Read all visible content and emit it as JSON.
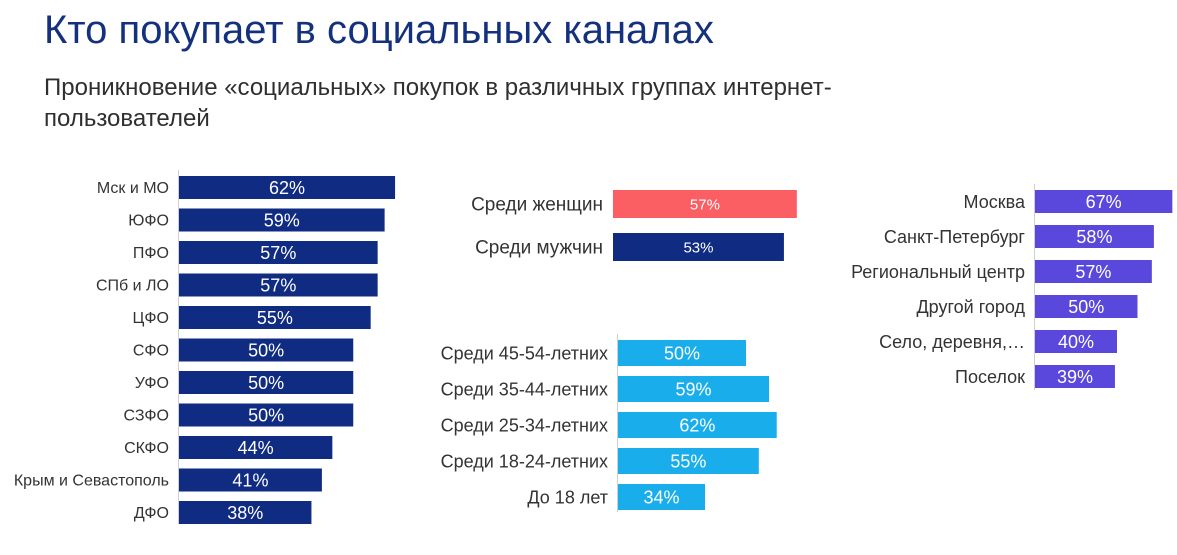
{
  "title": "Кто покупает в социальных каналах",
  "subtitle": "Проникновение «социальных» покупок в различных группах интернет-пользователей",
  "colors": {
    "navy": "#0f2b82",
    "coral": "#fb5e63",
    "sky": "#19aeeb",
    "violet": "#5a48dc",
    "axis": "#cfcfcf",
    "label": "#333333"
  },
  "chart_data": [
    {
      "type": "bar",
      "orientation": "horizontal",
      "categories": [
        "Мск и МО",
        "ЮФО",
        "ПФО",
        "СПб и ЛО",
        "ЦФО",
        "СФО",
        "УФО",
        "СЗФО",
        "СКФО",
        "Крым и Севастополь",
        "ДФО"
      ],
      "values": [
        62,
        59,
        57,
        57,
        55,
        50,
        50,
        50,
        44,
        41,
        38
      ],
      "data_labels": [
        "62%",
        "59%",
        "57%",
        "57%",
        "55%",
        "50%",
        "50%",
        "50%",
        "44%",
        "41%",
        "38%"
      ],
      "color": "#0f2b82"
    },
    {
      "type": "bar",
      "orientation": "horizontal",
      "categories": [
        "Среди женщин",
        "Среди мужчин"
      ],
      "values": [
        57,
        53
      ],
      "data_labels": [
        "57%",
        "53%"
      ],
      "colors": [
        "#fb5e63",
        "#0f2b82"
      ]
    },
    {
      "type": "bar",
      "orientation": "horizontal",
      "categories": [
        "Среди 45-54-летних",
        "Среди 35-44-летних",
        "Среди 25-34-летних",
        "Среди 18-24-летних",
        "До 18 лет"
      ],
      "values": [
        50,
        59,
        62,
        55,
        34
      ],
      "data_labels": [
        "50%",
        "59%",
        "62%",
        "55%",
        "34%"
      ],
      "color": "#19aeeb"
    },
    {
      "type": "bar",
      "orientation": "horizontal",
      "categories": [
        "Москва",
        "Санкт-Петербург",
        "Региональный центр",
        "Другой город",
        "Село, деревня,…",
        "Поселок"
      ],
      "values": [
        67,
        58,
        57,
        50,
        40,
        39
      ],
      "data_labels": [
        "67%",
        "58%",
        "57%",
        "50%",
        "40%",
        "39%"
      ],
      "color": "#5a48dc"
    }
  ]
}
